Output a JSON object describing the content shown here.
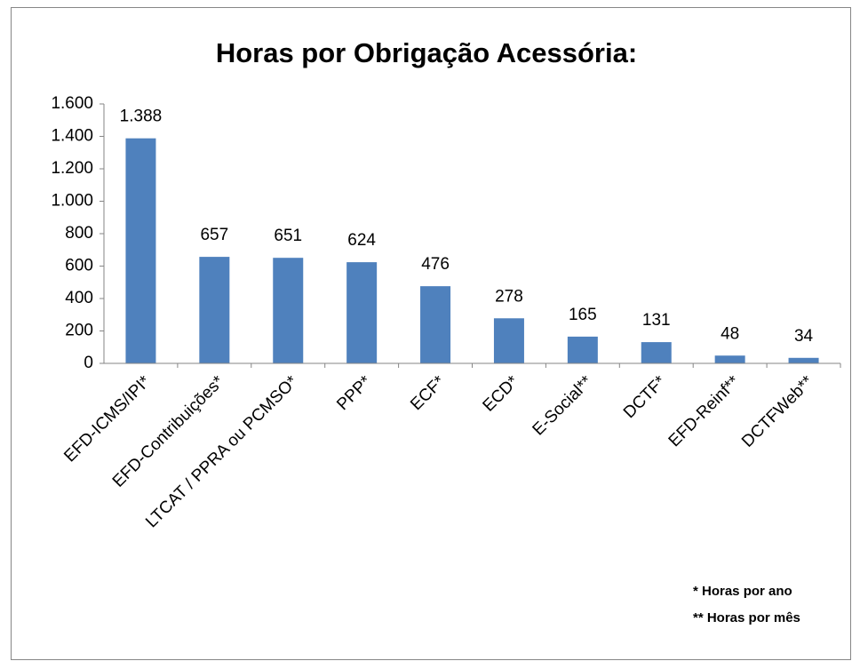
{
  "chart_data": {
    "type": "bar",
    "title": "Horas por Obrigação Acessória:",
    "categories": [
      "EFD-ICMS/IPI*",
      "EFD-Contribuições*",
      "LTCAT / PPRA ou PCMSO*",
      "PPP*",
      "ECF*",
      "ECD*",
      "E-Social**",
      "DCTF*",
      "EFD-Reinf**",
      "DCTFWeb**"
    ],
    "values": [
      1388,
      657,
      651,
      624,
      476,
      278,
      165,
      131,
      48,
      34
    ],
    "value_labels": [
      "1.388",
      "657",
      "651",
      "624",
      "476",
      "278",
      "165",
      "131",
      "48",
      "34"
    ],
    "color": "#4f81bd",
    "ylim": [
      0,
      1600
    ],
    "yticks": [
      0,
      200,
      400,
      600,
      800,
      {
        "value": 1000,
        "label": "1.000"
      },
      {
        "value": 1200,
        "label": "1.200"
      },
      {
        "value": 1400,
        "label": "1.400"
      },
      {
        "value": 1600,
        "label": "1.600"
      }
    ],
    "grid": false,
    "annotations": [
      "*   Horas por ano",
      "** Horas por mês"
    ]
  }
}
